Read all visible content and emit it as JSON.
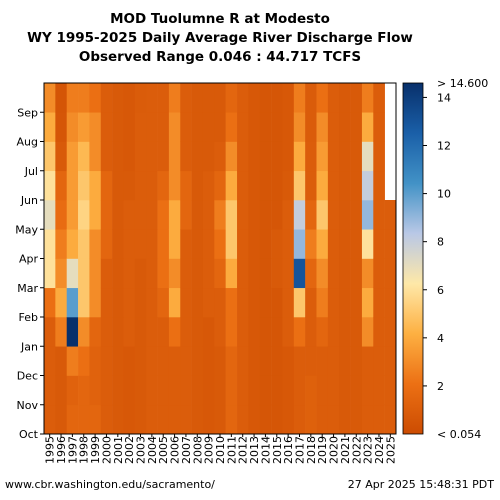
{
  "title_lines": [
    "MOD Tuolumne R at Modesto",
    "WY 1995-2025 Daily Average River Discharge Flow",
    "Observed Range 0.046 : 44.717 TCFS"
  ],
  "footer": {
    "source": "www.cbr.washington.edu/sacramento/",
    "timestamp": "27 Apr 2025 15:48:31 PDT"
  },
  "chart_data": {
    "type": "heatmap",
    "title": "MOD Tuolumne R at Modesto WY 1995-2025 Daily Average River Discharge Flow Observed Range 0.046 : 44.717 TCFS",
    "x_categories": [
      "1995",
      "1996",
      "1997",
      "1998",
      "1999",
      "2000",
      "2001",
      "2002",
      "2003",
      "2004",
      "2005",
      "2006",
      "2007",
      "2008",
      "2009",
      "2010",
      "2011",
      "2012",
      "2013",
      "2014",
      "2015",
      "2016",
      "2017",
      "2018",
      "2019",
      "2020",
      "2021",
      "2022",
      "2023",
      "2024",
      "2025"
    ],
    "y_months": [
      "Oct",
      "Nov",
      "Dec",
      "Jan",
      "Feb",
      "Mar",
      "Apr",
      "May",
      "Jun",
      "Jul",
      "Aug",
      "Sep"
    ],
    "colorbar": {
      "ticks": [
        2,
        4,
        6,
        8,
        10,
        12,
        14
      ],
      "min_label": "< 0.054",
      "max_label": "> 14.600",
      "range": [
        0,
        14.6
      ],
      "colors": [
        "#cc4c02",
        "#ec7014",
        "#fdb042",
        "#fee8a8",
        "#b9c8e6",
        "#4292c6",
        "#1a5fa8",
        "#08306b"
      ]
    },
    "monthly_flow_tcfs": [
      [
        1,
        1,
        1,
        1,
        2,
        6,
        6,
        7,
        6,
        5,
        4,
        3
      ],
      [
        0.8,
        0.8,
        0.8,
        2.5,
        4,
        3,
        2.5,
        1.8,
        1.5,
        0.8,
        0.6,
        0.5
      ],
      [
        1.5,
        1.3,
        2.5,
        14.6,
        10,
        7,
        4,
        3.5,
        3.5,
        3.5,
        3,
        2.5
      ],
      [
        1.5,
        1.5,
        2,
        3,
        5,
        5,
        5,
        5.5,
        5,
        4.5,
        3.5,
        2.5
      ],
      [
        1.5,
        1.3,
        1.3,
        1.5,
        3,
        3,
        3,
        4,
        4,
        3,
        3,
        2
      ],
      [
        1,
        1,
        1,
        1,
        1,
        1,
        1.5,
        1.5,
        1.5,
        1,
        1,
        1
      ],
      [
        0.8,
        0.8,
        0.8,
        0.8,
        0.8,
        0.8,
        0.8,
        0.8,
        0.8,
        0.8,
        0.8,
        0.8
      ],
      [
        0.7,
        0.7,
        0.7,
        1,
        1,
        1,
        1,
        1,
        0.8,
        0.7,
        0.7,
        0.7
      ],
      [
        0.8,
        0.8,
        0.8,
        0.8,
        0.8,
        0.8,
        1,
        1,
        1,
        1,
        1,
        0.9
      ],
      [
        1,
        1,
        1,
        1,
        1,
        1,
        1,
        1,
        1,
        1,
        1,
        1
      ],
      [
        1,
        1,
        1,
        1,
        1.5,
        2,
        2,
        2,
        1.5,
        1,
        1,
        1
      ],
      [
        1,
        1,
        1,
        2,
        4,
        3,
        4,
        4,
        3,
        3,
        3,
        2.5
      ],
      [
        1,
        1,
        1,
        1,
        1,
        1,
        1,
        1.5,
        1.5,
        1,
        1,
        1
      ],
      [
        0.8,
        0.8,
        0.8,
        0.8,
        0.8,
        0.8,
        0.8,
        0.8,
        0.8,
        0.8,
        0.8,
        0.8
      ],
      [
        0.7,
        0.7,
        0.7,
        0.7,
        1,
        1,
        1,
        1,
        1,
        0.8,
        0.8,
        0.8
      ],
      [
        0.8,
        0.8,
        0.8,
        1,
        1,
        1.5,
        2,
        2.5,
        1.5,
        1,
        0.8,
        0.8
      ],
      [
        1.5,
        1.5,
        1.5,
        2,
        2,
        4,
        5,
        5,
        4,
        3,
        2,
        1.5
      ],
      [
        1,
        1,
        1,
        1,
        1,
        1,
        1,
        1,
        1,
        1,
        1,
        1
      ],
      [
        0.7,
        0.7,
        0.7,
        0.7,
        0.7,
        0.7,
        0.7,
        0.7,
        0.7,
        0.7,
        0.7,
        0.7
      ],
      [
        0.6,
        0.6,
        0.6,
        0.6,
        0.6,
        0.6,
        0.6,
        0.6,
        0.6,
        0.6,
        0.6,
        0.6
      ],
      [
        0.6,
        0.6,
        0.6,
        0.6,
        0.6,
        0.8,
        0.8,
        0.6,
        0.6,
        0.6,
        0.6,
        0.6
      ],
      [
        0.7,
        0.7,
        0.7,
        1,
        1,
        1,
        1,
        1,
        0.8,
        0.7,
        0.7,
        0.7
      ],
      [
        1,
        1,
        1,
        2,
        5,
        13,
        9,
        8,
        5,
        4,
        3,
        2.5
      ],
      [
        1.2,
        1.2,
        1,
        1,
        1,
        1.5,
        2.5,
        1.5,
        1,
        1,
        0.9,
        0.9
      ],
      [
        1,
        1,
        1,
        1.5,
        2.5,
        3,
        4,
        5,
        4,
        3.5,
        3,
        2
      ],
      [
        1,
        1,
        1,
        1,
        1,
        1,
        1,
        1,
        1,
        1,
        1,
        1
      ],
      [
        0.8,
        0.8,
        0.8,
        0.8,
        0.8,
        0.8,
        0.8,
        0.8,
        0.8,
        0.8,
        0.8,
        0.8
      ],
      [
        0.8,
        0.8,
        0.8,
        0.8,
        0.8,
        0.8,
        0.8,
        0.8,
        0.8,
        0.8,
        0.8,
        0.8
      ],
      [
        1,
        1,
        1,
        3,
        4,
        3,
        6,
        9,
        8,
        7,
        4,
        2.5
      ],
      [
        1,
        1,
        1,
        1,
        1,
        1,
        1,
        1,
        1,
        1,
        1,
        1
      ],
      [
        1,
        1,
        1,
        1,
        1,
        1,
        1,
        1
      ]
    ]
  }
}
